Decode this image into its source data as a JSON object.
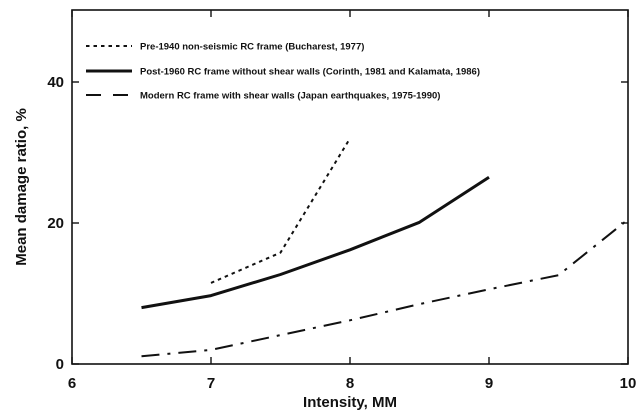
{
  "chart_data": {
    "type": "line",
    "title": "",
    "xlabel": "Intensity, MM",
    "ylabel": "Mean damage ratio, %",
    "xlim": [
      6,
      10
    ],
    "ylim": [
      0,
      50
    ],
    "xticks": [
      "6",
      "7",
      "8",
      "9",
      "10"
    ],
    "yticks": [
      "0",
      "20",
      "40"
    ],
    "grid": false,
    "legend_position": "top-left",
    "series": [
      {
        "name": "Pre-1940 non-seismic RC frame (Bucharest, 1977)",
        "style": "dotted",
        "x": [
          7,
          7.5,
          8
        ],
        "y": [
          11.5,
          15.8,
          32
        ]
      },
      {
        "name": "Post-1960 RC frame without shear walls (Corinth, 1981 and Kalamata, 1986)",
        "style": "solid",
        "x": [
          6.5,
          7,
          7.5,
          8,
          8.5,
          9
        ],
        "y": [
          8,
          9.7,
          12.7,
          16.2,
          20.1,
          26.5
        ]
      },
      {
        "name": "Modern RC frame with shear walls (Japan earthquakes, 1975-1990)",
        "style": "dash-dot",
        "x": [
          6.5,
          7,
          7.5,
          8,
          8.5,
          9,
          9.5,
          10
        ],
        "y": [
          1.1,
          2,
          4.1,
          6.2,
          8.5,
          10.6,
          12.6,
          20.5
        ]
      }
    ]
  }
}
